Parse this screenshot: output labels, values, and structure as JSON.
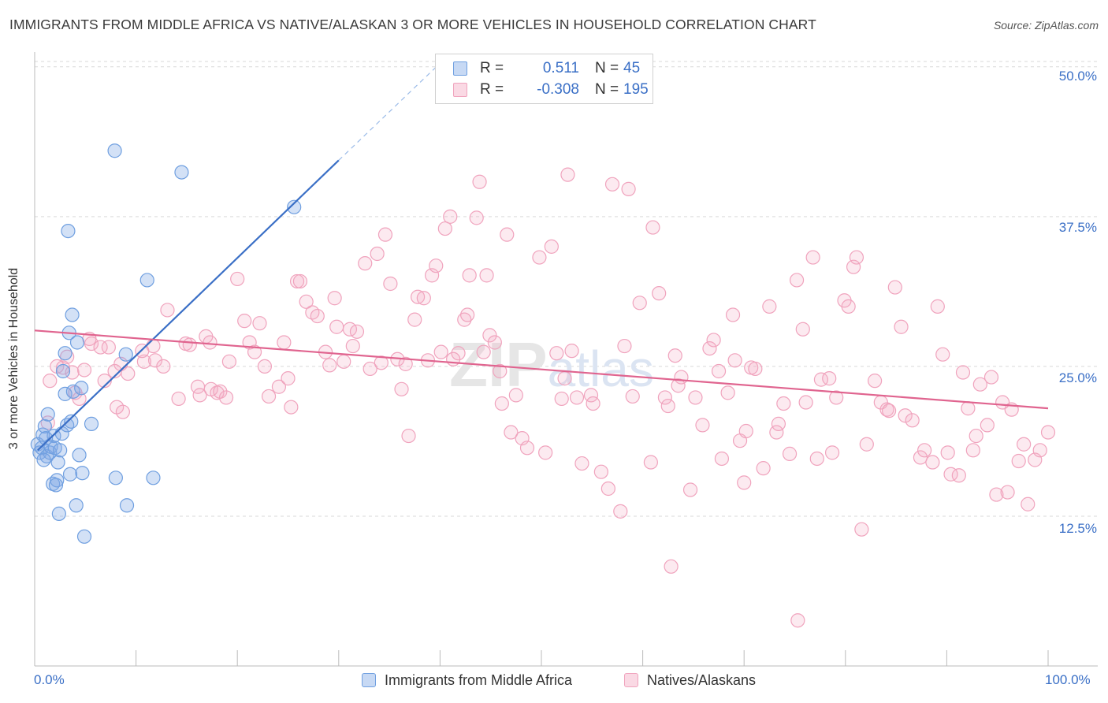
{
  "title": "IMMIGRANTS FROM MIDDLE AFRICA VS NATIVE/ALASKAN 3 OR MORE VEHICLES IN HOUSEHOLD CORRELATION CHART",
  "source": "Source: ZipAtlas.com",
  "colors": {
    "blue": "#3a6fc6",
    "blue_fill": "rgba(130,170,230,0.35)",
    "blue_stroke": "#6f9fe0",
    "pink": "#e0648f",
    "pink_fill": "rgba(245,170,195,0.25)",
    "pink_stroke": "#f0a3bd",
    "grid": "#d9d9d9"
  },
  "legend": {
    "rows": [
      {
        "r_label": "R =",
        "r_value": "0.511",
        "n_label": "N =",
        "n_value": "45"
      },
      {
        "r_label": "R =",
        "r_value": "-0.308",
        "n_label": "N =",
        "n_value": "195"
      }
    ]
  },
  "chart_data": {
    "type": "scatter",
    "title": "IMMIGRANTS FROM MIDDLE AFRICA VS NATIVE/ALASKAN 3 OR MORE VEHICLES IN HOUSEHOLD CORRELATION CHART",
    "xlabel": "",
    "ylabel": "3 or more Vehicles in Household",
    "xlim": [
      0,
      100
    ],
    "ylim": [
      0,
      51.5
    ],
    "y_ticks": [
      12.5,
      25.0,
      37.5,
      50.0
    ],
    "y_tick_labels": [
      "12.5%",
      "25.0%",
      "37.5%",
      "50.0%"
    ],
    "x_tick_labels": [
      "0.0%",
      "100.0%"
    ],
    "x_minor_ticks": [
      0,
      10,
      20,
      30,
      40,
      50,
      60,
      70,
      80,
      90,
      100
    ],
    "legend_position": "top-center",
    "series": [
      {
        "name": "Immigrants from Middle Africa",
        "color": "blue",
        "R": 0.511,
        "N": 45,
        "trend": {
          "x0": 0.3,
          "y0": 18.0,
          "x1": 30.0,
          "y1": 42.2,
          "dash_x1": 40.0,
          "dash_y1": 50.3
        },
        "points": [
          [
            0.3,
            18.5
          ],
          [
            0.5,
            17.8
          ],
          [
            0.7,
            18.2
          ],
          [
            0.8,
            19.3
          ],
          [
            1.0,
            20.0
          ],
          [
            1.2,
            17.5
          ],
          [
            1.3,
            21.0
          ],
          [
            1.5,
            17.8
          ],
          [
            1.6,
            18.3
          ],
          [
            1.8,
            15.2
          ],
          [
            1.9,
            19.2
          ],
          [
            2.0,
            18.2
          ],
          [
            2.2,
            15.5
          ],
          [
            2.3,
            17.0
          ],
          [
            2.4,
            12.7
          ],
          [
            2.7,
            19.4
          ],
          [
            2.8,
            24.6
          ],
          [
            3.0,
            26.1
          ],
          [
            3.0,
            22.7
          ],
          [
            3.2,
            20.1
          ],
          [
            3.3,
            36.3
          ],
          [
            3.4,
            27.8
          ],
          [
            3.5,
            16.0
          ],
          [
            3.6,
            20.4
          ],
          [
            3.7,
            29.3
          ],
          [
            3.8,
            22.9
          ],
          [
            4.1,
            13.4
          ],
          [
            4.2,
            27.0
          ],
          [
            4.4,
            17.6
          ],
          [
            4.6,
            23.2
          ],
          [
            4.7,
            16.1
          ],
          [
            4.9,
            10.8
          ],
          [
            5.6,
            20.2
          ],
          [
            7.9,
            43.0
          ],
          [
            8.0,
            15.7
          ],
          [
            9.1,
            13.4
          ],
          [
            9.0,
            26.0
          ],
          [
            11.1,
            32.2
          ],
          [
            11.7,
            15.7
          ],
          [
            14.5,
            41.2
          ],
          [
            25.6,
            38.3
          ],
          [
            2.5,
            18.0
          ],
          [
            1.1,
            19.0
          ],
          [
            0.9,
            17.2
          ],
          [
            2.1,
            15.1
          ]
        ]
      },
      {
        "name": "Natives/Alaskans",
        "color": "pink",
        "R": -0.308,
        "N": 195,
        "trend": {
          "x0": 0.0,
          "y0": 28.0,
          "x1": 100.0,
          "y1": 21.5
        },
        "points": [
          [
            1.3,
            20.3
          ],
          [
            1.5,
            23.8
          ],
          [
            2.2,
            25.0
          ],
          [
            2.8,
            24.9
          ],
          [
            3.2,
            25.8
          ],
          [
            3.7,
            24.5
          ],
          [
            4.0,
            22.8
          ],
          [
            4.4,
            22.3
          ],
          [
            4.9,
            24.7
          ],
          [
            5.4,
            27.3
          ],
          [
            5.6,
            26.9
          ],
          [
            6.5,
            26.6
          ],
          [
            6.9,
            23.8
          ],
          [
            7.3,
            26.6
          ],
          [
            7.9,
            24.6
          ],
          [
            8.1,
            21.6
          ],
          [
            8.5,
            25.2
          ],
          [
            8.7,
            21.2
          ],
          [
            9.2,
            24.4
          ],
          [
            10.8,
            25.4
          ],
          [
            10.6,
            26.3
          ],
          [
            11.7,
            26.7
          ],
          [
            11.9,
            25.5
          ],
          [
            12.7,
            25.0
          ],
          [
            13.1,
            29.7
          ],
          [
            14.2,
            22.3
          ],
          [
            14.9,
            26.9
          ],
          [
            15.3,
            26.8
          ],
          [
            16.1,
            23.3
          ],
          [
            16.3,
            22.6
          ],
          [
            16.9,
            27.5
          ],
          [
            17.3,
            27.0
          ],
          [
            17.4,
            23.1
          ],
          [
            18.0,
            22.8
          ],
          [
            18.3,
            22.9
          ],
          [
            18.9,
            22.4
          ],
          [
            19.2,
            25.4
          ],
          [
            20.0,
            32.3
          ],
          [
            20.7,
            28.8
          ],
          [
            21.2,
            27.0
          ],
          [
            21.7,
            26.2
          ],
          [
            22.2,
            28.6
          ],
          [
            22.7,
            25.0
          ],
          [
            23.1,
            22.5
          ],
          [
            24.1,
            23.3
          ],
          [
            24.6,
            27.0
          ],
          [
            25.0,
            24.0
          ],
          [
            25.3,
            21.6
          ],
          [
            25.9,
            32.1
          ],
          [
            26.2,
            32.1
          ],
          [
            26.8,
            30.4
          ],
          [
            27.4,
            29.5
          ],
          [
            27.9,
            29.2
          ],
          [
            28.7,
            26.2
          ],
          [
            29.1,
            25.1
          ],
          [
            29.6,
            30.7
          ],
          [
            29.8,
            28.3
          ],
          [
            30.5,
            25.4
          ],
          [
            31.1,
            28.1
          ],
          [
            31.4,
            26.7
          ],
          [
            31.8,
            27.9
          ],
          [
            32.6,
            33.6
          ],
          [
            33.1,
            24.8
          ],
          [
            33.8,
            34.4
          ],
          [
            34.2,
            25.3
          ],
          [
            34.6,
            36.0
          ],
          [
            35.1,
            31.9
          ],
          [
            35.8,
            25.6
          ],
          [
            36.2,
            23.1
          ],
          [
            36.6,
            25.2
          ],
          [
            36.9,
            19.2
          ],
          [
            37.5,
            28.9
          ],
          [
            37.8,
            30.8
          ],
          [
            38.4,
            30.7
          ],
          [
            38.8,
            25.5
          ],
          [
            39.2,
            32.6
          ],
          [
            39.6,
            33.4
          ],
          [
            40.1,
            26.2
          ],
          [
            40.5,
            36.5
          ],
          [
            41.0,
            37.5
          ],
          [
            41.8,
            26.1
          ],
          [
            42.4,
            28.9
          ],
          [
            42.7,
            29.3
          ],
          [
            42.9,
            32.6
          ],
          [
            43.6,
            37.4
          ],
          [
            43.9,
            40.4
          ],
          [
            44.3,
            26.2
          ],
          [
            44.6,
            32.6
          ],
          [
            44.9,
            27.6
          ],
          [
            45.4,
            27.0
          ],
          [
            45.9,
            24.6
          ],
          [
            46.1,
            21.9
          ],
          [
            46.6,
            36.0
          ],
          [
            47.0,
            19.5
          ],
          [
            47.5,
            22.6
          ],
          [
            48.1,
            19.0
          ],
          [
            48.6,
            18.2
          ],
          [
            49.8,
            34.1
          ],
          [
            50.4,
            17.8
          ],
          [
            51.0,
            35.0
          ],
          [
            51.5,
            26.1
          ],
          [
            52.0,
            22.3
          ],
          [
            52.3,
            24.0
          ],
          [
            52.6,
            41.0
          ],
          [
            53.0,
            26.3
          ],
          [
            53.5,
            22.4
          ],
          [
            54.0,
            16.9
          ],
          [
            54.9,
            22.6
          ],
          [
            55.1,
            21.9
          ],
          [
            55.9,
            16.2
          ],
          [
            56.6,
            14.8
          ],
          [
            57.0,
            40.2
          ],
          [
            57.8,
            12.9
          ],
          [
            58.2,
            26.7
          ],
          [
            58.6,
            39.8
          ],
          [
            59.0,
            22.5
          ],
          [
            59.7,
            30.3
          ],
          [
            60.8,
            17.0
          ],
          [
            61.0,
            36.6
          ],
          [
            61.6,
            31.1
          ],
          [
            62.2,
            22.4
          ],
          [
            62.5,
            21.7
          ],
          [
            62.8,
            8.3
          ],
          [
            63.2,
            25.9
          ],
          [
            63.5,
            23.4
          ],
          [
            63.8,
            24.1
          ],
          [
            64.7,
            14.7
          ],
          [
            65.2,
            22.4
          ],
          [
            65.9,
            20.1
          ],
          [
            66.6,
            26.5
          ],
          [
            67.0,
            27.2
          ],
          [
            67.5,
            24.6
          ],
          [
            67.8,
            17.3
          ],
          [
            68.4,
            22.8
          ],
          [
            68.9,
            29.3
          ],
          [
            69.1,
            25.5
          ],
          [
            69.6,
            18.8
          ],
          [
            70.0,
            15.3
          ],
          [
            70.2,
            19.6
          ],
          [
            70.7,
            24.9
          ],
          [
            71.1,
            24.8
          ],
          [
            71.9,
            16.5
          ],
          [
            72.5,
            30.0
          ],
          [
            73.2,
            19.5
          ],
          [
            73.4,
            20.2
          ],
          [
            73.9,
            21.9
          ],
          [
            74.5,
            17.7
          ],
          [
            75.2,
            32.2
          ],
          [
            75.8,
            28.1
          ],
          [
            76.1,
            22.0
          ],
          [
            76.8,
            34.1
          ],
          [
            77.2,
            17.3
          ],
          [
            77.6,
            23.9
          ],
          [
            78.4,
            24.0
          ],
          [
            78.7,
            17.8
          ],
          [
            79.1,
            22.4
          ],
          [
            79.9,
            30.5
          ],
          [
            80.3,
            30.0
          ],
          [
            80.8,
            33.3
          ],
          [
            81.1,
            34.1
          ],
          [
            81.6,
            11.4
          ],
          [
            82.1,
            18.5
          ],
          [
            82.9,
            23.8
          ],
          [
            83.5,
            22.0
          ],
          [
            84.1,
            21.4
          ],
          [
            84.9,
            31.6
          ],
          [
            85.5,
            28.3
          ],
          [
            85.9,
            20.9
          ],
          [
            86.6,
            20.5
          ],
          [
            87.4,
            17.4
          ],
          [
            87.8,
            18.0
          ],
          [
            88.6,
            17.0
          ],
          [
            89.1,
            30.0
          ],
          [
            89.6,
            26.0
          ],
          [
            90.1,
            17.8
          ],
          [
            90.4,
            16.0
          ],
          [
            91.2,
            15.9
          ],
          [
            92.1,
            21.5
          ],
          [
            92.6,
            18.0
          ],
          [
            92.9,
            19.2
          ],
          [
            93.3,
            23.5
          ],
          [
            94.0,
            20.1
          ],
          [
            94.4,
            24.1
          ],
          [
            94.9,
            14.3
          ],
          [
            95.5,
            22.0
          ],
          [
            96.0,
            14.5
          ],
          [
            96.4,
            21.4
          ],
          [
            97.1,
            17.1
          ],
          [
            97.6,
            18.5
          ],
          [
            98.0,
            13.5
          ],
          [
            98.7,
            17.2
          ],
          [
            99.2,
            18.0
          ],
          [
            100.0,
            19.5
          ],
          [
            75.3,
            3.8
          ],
          [
            84.3,
            21.3
          ],
          [
            91.6,
            24.5
          ],
          [
            41.3,
            25.6
          ]
        ]
      }
    ]
  },
  "legend_bottom": [
    "Immigrants from Middle Africa",
    "Natives/Alaskans"
  ]
}
